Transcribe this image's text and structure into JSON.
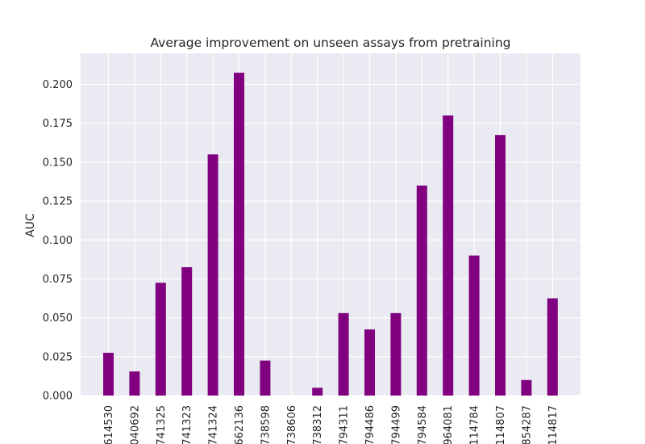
{
  "chart_data": {
    "type": "bar",
    "title": "Average improvement on unseen assays from pretraining",
    "xlabel": "",
    "ylabel": "AUC",
    "categories": [
      "614530",
      "040692",
      "741325",
      "741323",
      "741324",
      "662136",
      "738598",
      "738606",
      "738312",
      "794311",
      "794486",
      "794499",
      "794584",
      "964081",
      "114784",
      "114807",
      "854287",
      "114817"
    ],
    "values": [
      0.0275,
      0.0155,
      0.0725,
      0.0825,
      0.155,
      0.2075,
      0.0225,
      0.0,
      0.005,
      0.053,
      0.0425,
      0.053,
      0.135,
      0.18,
      0.09,
      0.1675,
      0.01,
      0.0625
    ],
    "ylim": [
      0,
      0.22
    ],
    "yticks": [
      "0.000",
      "0.025",
      "0.050",
      "0.075",
      "0.100",
      "0.125",
      "0.150",
      "0.175",
      "0.200"
    ],
    "grid": true,
    "colors": {
      "bar": "#800080",
      "plot_bg": "#eaeaf2",
      "grid": "#ffffff"
    }
  }
}
